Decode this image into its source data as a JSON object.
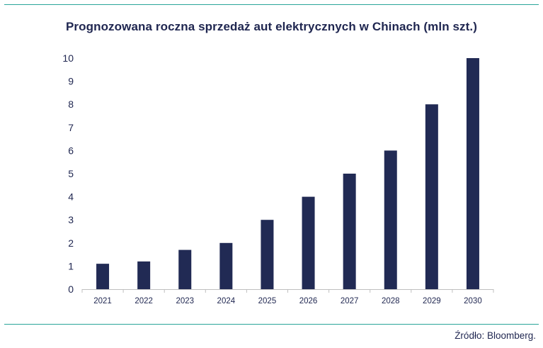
{
  "title": "Prognozowana roczna sprzedaż aut elektrycznych w Chinach (mln szt.)",
  "source": "Źródło: Bloomberg.",
  "colors": {
    "bar": "#212a54",
    "text": "#1f2650",
    "rule": "#2aa59a",
    "axis": "#bfbfbf"
  },
  "chart_data": {
    "type": "bar",
    "title": "Prognozowana roczna sprzedaż aut elektrycznych w Chinach (mln szt.)",
    "xlabel": "",
    "ylabel": "",
    "categories": [
      "2021",
      "2022",
      "2023",
      "2024",
      "2025",
      "2026",
      "2027",
      "2028",
      "2029",
      "2030"
    ],
    "values": [
      1.1,
      1.2,
      1.7,
      2.0,
      3.0,
      4.0,
      5.0,
      6.0,
      8.0,
      10.0
    ],
    "ylim": [
      0,
      10
    ],
    "yticks": [
      0,
      1,
      2,
      3,
      4,
      5,
      6,
      7,
      8,
      9,
      10
    ],
    "grid": false,
    "legend": "none"
  }
}
